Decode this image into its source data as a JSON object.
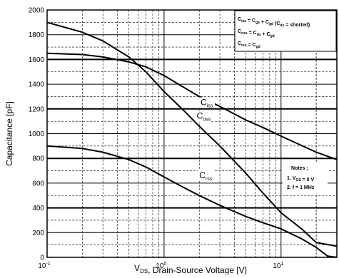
{
  "chart_data": {
    "type": "line",
    "xscale": "log",
    "xlim": [
      0.1,
      30
    ],
    "ylim": [
      0,
      2000
    ],
    "xlabel": {
      "main": "V",
      "sub": "DS",
      "rest": ", Drain-Source Voltage [V]"
    },
    "ylabel": "Capacitance [pF]",
    "x_ticks": [
      {
        "value": 0.1,
        "base": "10",
        "exp": "-1"
      },
      {
        "value": 1,
        "base": "10",
        "exp": "0"
      },
      {
        "value": 10,
        "base": "10",
        "exp": "1"
      }
    ],
    "y_ticks": [
      0,
      200,
      400,
      600,
      800,
      1000,
      1200,
      1400,
      1600,
      1800,
      2000
    ],
    "grid": true,
    "legend_box": {
      "placement": "top-right",
      "lines": [
        {
          "parts": [
            [
              "C",
              "iss"
            ],
            [
              " = C",
              "gs"
            ],
            [
              " + C",
              "gd"
            ],
            [
              " (C",
              "ds"
            ],
            [
              " = shorted)",
              ""
            ]
          ]
        },
        {
          "parts": [
            [
              "C",
              "oss"
            ],
            [
              " = C",
              "ds"
            ],
            [
              " + C",
              "gd"
            ]
          ]
        },
        {
          "parts": [
            [
              "C",
              "rss"
            ],
            [
              " = C",
              "gd"
            ]
          ]
        }
      ]
    },
    "notes_box": {
      "placement": "right",
      "title": "Notes ;",
      "lines": [
        {
          "parts": [
            [
              "1. V",
              "GS"
            ],
            [
              " = 0 V",
              ""
            ]
          ]
        },
        {
          "parts": [
            [
              "2. f = 1 MHz",
              ""
            ]
          ]
        }
      ]
    },
    "series": [
      {
        "label_main": "C",
        "label_sub": "iss",
        "x": [
          0.1,
          0.2,
          0.3,
          0.5,
          0.7,
          1,
          1.5,
          2,
          3,
          5,
          7,
          10,
          20,
          30
        ],
        "y": [
          1650,
          1640,
          1620,
          1580,
          1540,
          1470,
          1370,
          1300,
          1220,
          1110,
          1050,
          980,
          850,
          790
        ]
      },
      {
        "label_main": "C",
        "label_sub": "oss",
        "x": [
          0.1,
          0.2,
          0.3,
          0.5,
          0.7,
          1,
          1.5,
          2,
          3,
          5,
          7,
          10,
          15,
          20,
          30
        ],
        "y": [
          1900,
          1820,
          1750,
          1620,
          1500,
          1340,
          1180,
          1060,
          900,
          680,
          520,
          360,
          230,
          120,
          90
        ]
      },
      {
        "label_main": "C",
        "label_sub": "rss",
        "x": [
          0.1,
          0.2,
          0.3,
          0.5,
          0.7,
          1,
          1.5,
          2,
          3,
          5,
          7,
          10,
          15,
          20,
          25,
          30
        ],
        "y": [
          900,
          880,
          850,
          790,
          730,
          650,
          560,
          500,
          420,
          330,
          280,
          230,
          150,
          80,
          10,
          0
        ]
      }
    ]
  }
}
